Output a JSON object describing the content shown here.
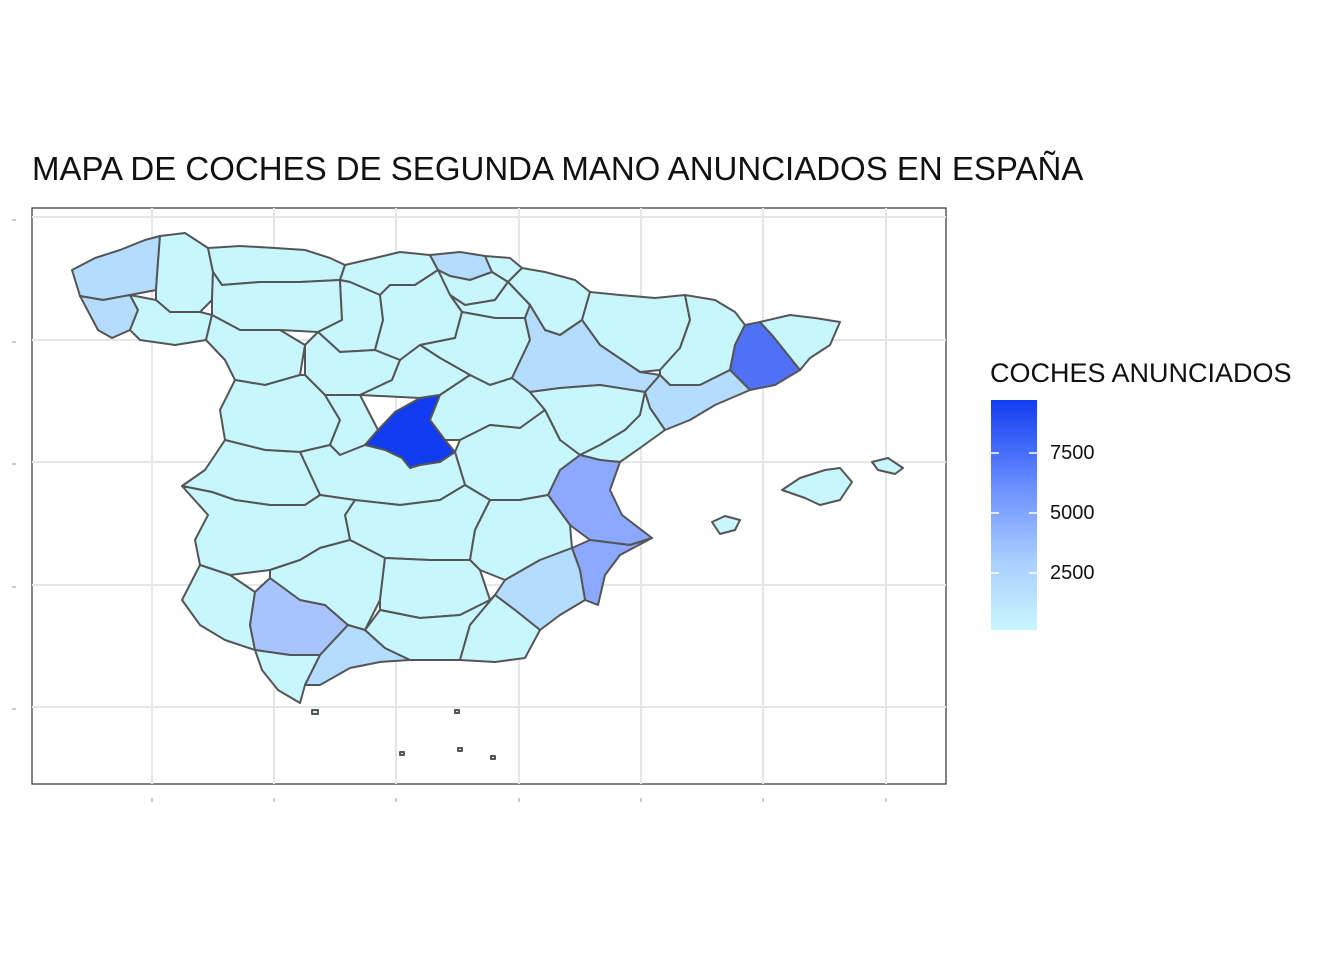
{
  "title": "MAPA DE COCHES DE SEGUNDA MANO ANUNCIADOS EN ESPAÑA",
  "legend": {
    "title": "COCHES ANUNCIADOS",
    "ticks": [
      "7500",
      "5000",
      "2500"
    ],
    "low_color": "#c8f6ff",
    "high_color": "#123cf0"
  },
  "colors": {
    "border": "#555555",
    "grid": "#e6e6e6",
    "low": "#c8f6ff",
    "light": "#b4dcff",
    "mid": "#8ca8ff",
    "high": "#5070f5",
    "max": "#123cf0"
  }
}
